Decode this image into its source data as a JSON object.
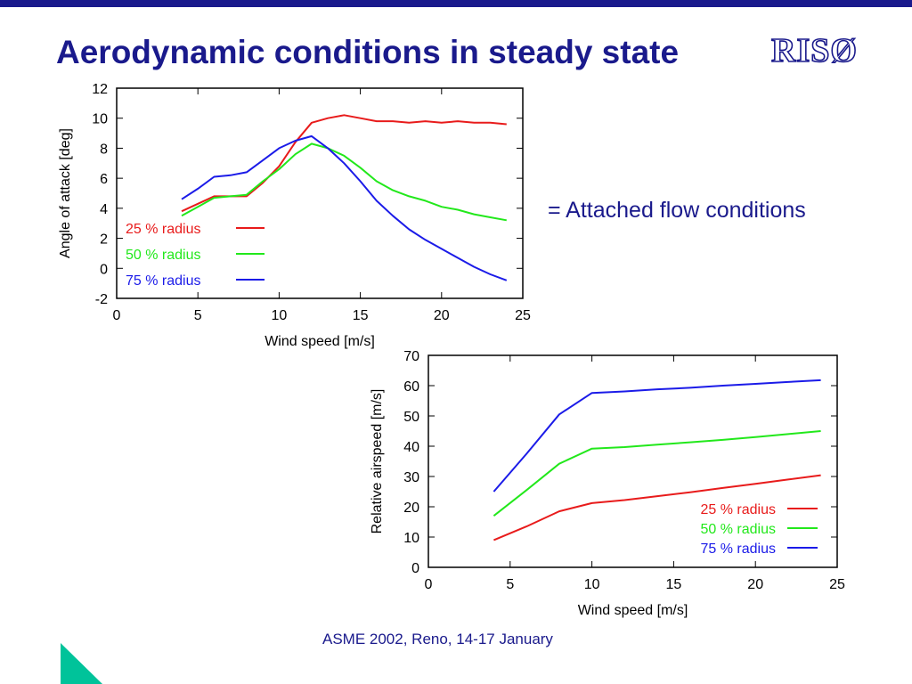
{
  "slide": {
    "title": "Aerodynamic conditions in steady state",
    "logo": "RISØ",
    "note": "= Attached flow conditions",
    "footer": "ASME 2002, Reno, 14-17 January"
  },
  "colors": {
    "title": "#1a1a8c",
    "series": [
      "#e81b1b",
      "#22e81b",
      "#1b1be8"
    ],
    "corner": "#00c39a"
  },
  "chart_data": [
    {
      "type": "line",
      "xlabel": "Wind speed [m/s]",
      "ylabel": "Angle of attack [deg]",
      "xlim": [
        0,
        25
      ],
      "ylim": [
        -2,
        12
      ],
      "xticks": [
        0,
        5,
        10,
        15,
        20,
        25
      ],
      "yticks": [
        -2,
        0,
        2,
        4,
        6,
        8,
        10,
        12
      ],
      "legend_position": "bottom-left",
      "series": [
        {
          "name": "25 % radius",
          "x": [
            4,
            5,
            6,
            7,
            8,
            9,
            10,
            11,
            12,
            13,
            14,
            15,
            16,
            17,
            18,
            19,
            20,
            21,
            22,
            23,
            24
          ],
          "y": [
            3.8,
            4.3,
            4.8,
            4.8,
            4.8,
            5.7,
            6.8,
            8.4,
            9.7,
            10.0,
            10.2,
            10.0,
            9.8,
            9.8,
            9.7,
            9.8,
            9.7,
            9.8,
            9.7,
            9.7,
            9.6
          ]
        },
        {
          "name": "50 % radius",
          "x": [
            4,
            5,
            6,
            7,
            8,
            9,
            10,
            11,
            12,
            13,
            14,
            15,
            16,
            17,
            18,
            19,
            20,
            21,
            22,
            23,
            24
          ],
          "y": [
            3.5,
            4.1,
            4.7,
            4.8,
            4.9,
            5.8,
            6.6,
            7.6,
            8.3,
            8.0,
            7.5,
            6.7,
            5.8,
            5.2,
            4.8,
            4.5,
            4.1,
            3.9,
            3.6,
            3.4,
            3.2
          ]
        },
        {
          "name": "75 % radius",
          "x": [
            4,
            5,
            6,
            7,
            8,
            9,
            10,
            11,
            12,
            13,
            14,
            15,
            16,
            17,
            18,
            19,
            20,
            21,
            22,
            23,
            24
          ],
          "y": [
            4.6,
            5.3,
            6.1,
            6.2,
            6.4,
            7.2,
            8.0,
            8.5,
            8.8,
            8.0,
            7.0,
            5.8,
            4.5,
            3.5,
            2.6,
            1.9,
            1.3,
            0.7,
            0.1,
            -0.4,
            -0.8
          ]
        }
      ]
    },
    {
      "type": "line",
      "xlabel": "Wind speed [m/s]",
      "ylabel": "Relative airspeed [m/s]",
      "xlim": [
        0,
        25
      ],
      "ylim": [
        0,
        70
      ],
      "xticks": [
        0,
        5,
        10,
        15,
        20,
        25
      ],
      "yticks": [
        0,
        10,
        20,
        30,
        40,
        50,
        60,
        70
      ],
      "legend_position": "bottom-right",
      "series": [
        {
          "name": "25 % radius",
          "x": [
            4,
            6,
            8,
            10,
            12,
            14,
            16,
            18,
            20,
            22,
            24
          ],
          "y": [
            9,
            13.5,
            18.5,
            21.2,
            22.2,
            23.5,
            24.8,
            26.2,
            27.6,
            29.0,
            30.4
          ]
        },
        {
          "name": "50 % radius",
          "x": [
            4,
            6,
            8,
            10,
            12,
            14,
            16,
            18,
            20,
            22,
            24
          ],
          "y": [
            17,
            25.5,
            34.2,
            39.2,
            39.7,
            40.5,
            41.3,
            42.1,
            43.0,
            44.0,
            45.0
          ]
        },
        {
          "name": "75 % radius",
          "x": [
            4,
            6,
            8,
            10,
            12,
            14,
            16,
            18,
            20,
            22,
            24
          ],
          "y": [
            25,
            37.5,
            50.5,
            57.6,
            58.1,
            58.8,
            59.3,
            60.0,
            60.6,
            61.2,
            61.8
          ]
        }
      ]
    }
  ]
}
